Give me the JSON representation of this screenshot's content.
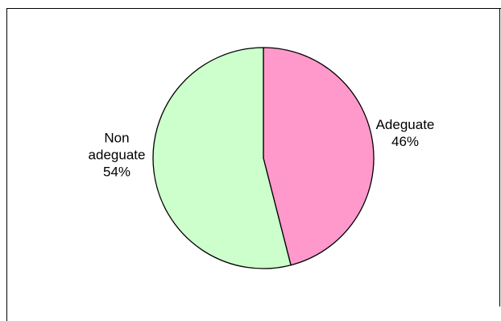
{
  "chart_data": {
    "type": "pie",
    "title": "",
    "slices": [
      {
        "label": "Adeguate",
        "value": 46,
        "value_label": "46%",
        "color": "#FF99CC"
      },
      {
        "label": "Non adeguate",
        "value": 54,
        "value_label": "54%",
        "color": "#CCFFCC"
      }
    ],
    "label_lines": [
      [
        "Adeguate",
        "46%"
      ],
      [
        "Non",
        "adeguate",
        "54%"
      ]
    ],
    "legend": "none",
    "border_color": "#000000",
    "outline_color": "#000000"
  }
}
